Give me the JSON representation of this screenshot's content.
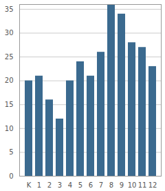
{
  "chart_data": {
    "type": "bar",
    "categories": [
      "K",
      "1",
      "2",
      "3",
      "4",
      "5",
      "6",
      "7",
      "8",
      "9",
      "10",
      "11",
      "12"
    ],
    "values": [
      20,
      21,
      16,
      12,
      20,
      24,
      21,
      26,
      36,
      34,
      28,
      27,
      23
    ],
    "color": "#3b6a8f",
    "ylim": [
      0,
      36
    ],
    "yticks": [
      0,
      5,
      10,
      15,
      20,
      25,
      30,
      35
    ],
    "grid": true
  }
}
